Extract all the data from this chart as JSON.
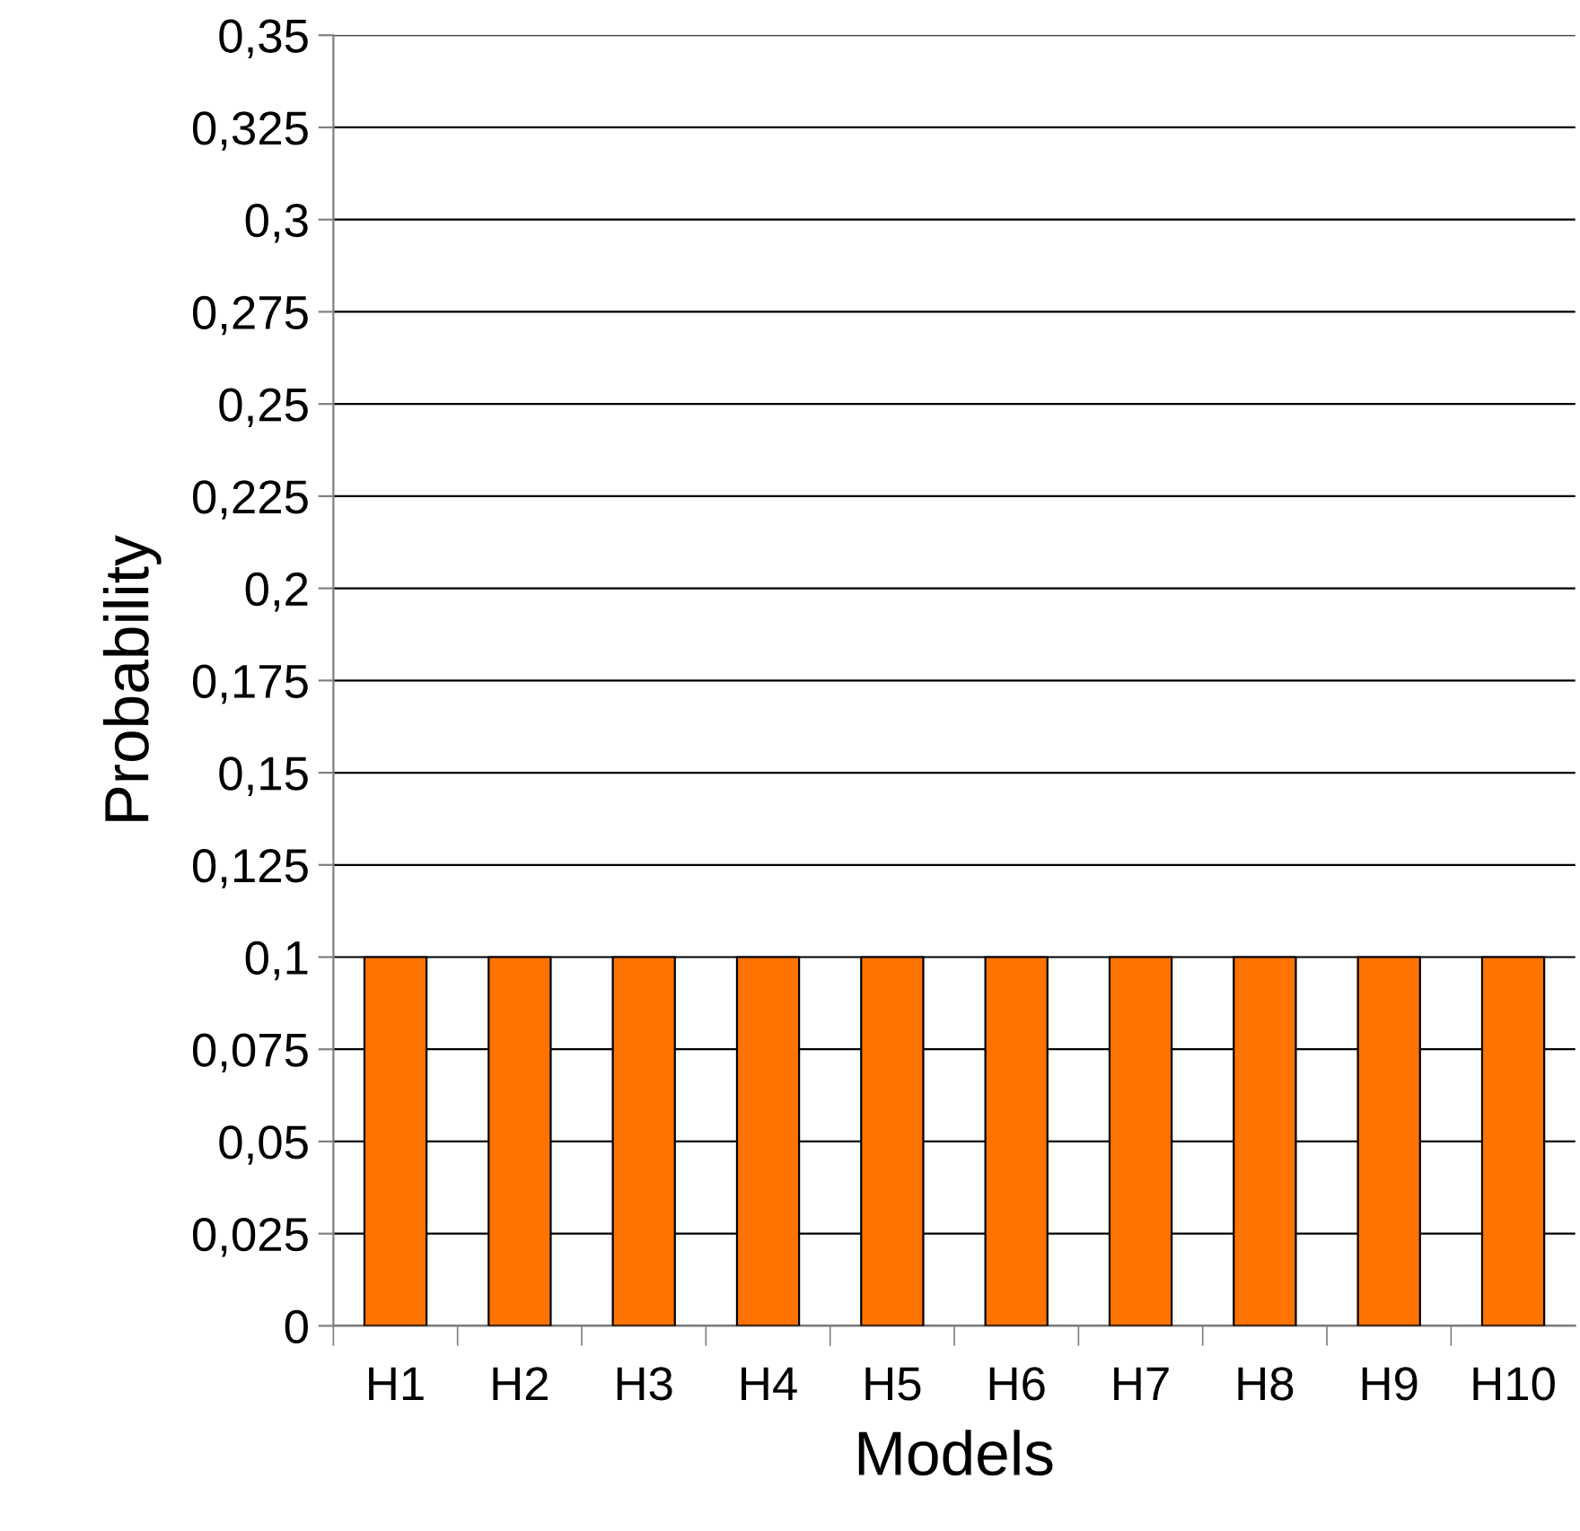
{
  "chart_data": {
    "type": "bar",
    "xlabel": "Models",
    "ylabel": "Probability",
    "categories": [
      "H1",
      "H2",
      "H3",
      "H4",
      "H5",
      "H6",
      "H7",
      "H8",
      "H9",
      "H10"
    ],
    "values": [
      0.1,
      0.1,
      0.1,
      0.1,
      0.1,
      0.1,
      0.1,
      0.1,
      0.1,
      0.1
    ],
    "color": "#ff7300",
    "ylim": [
      0,
      0.35
    ],
    "yticks": [
      0,
      {
        "value": 0.025,
        "label": "0,025"
      },
      {
        "value": 0.05,
        "label": "0,05"
      },
      {
        "value": 0.075,
        "label": "0,075"
      },
      {
        "value": 0.1,
        "label": "0,1"
      },
      {
        "value": 0.125,
        "label": "0,125"
      },
      {
        "value": 0.15,
        "label": "0,15"
      },
      {
        "value": 0.175,
        "label": "0,175"
      },
      {
        "value": 0.2,
        "label": "0,2"
      },
      {
        "value": 0.225,
        "label": "0,225"
      },
      {
        "value": 0.25,
        "label": "0,25"
      },
      {
        "value": 0.275,
        "label": "0,275"
      },
      {
        "value": 0.3,
        "label": "0,3"
      },
      {
        "value": 0.325,
        "label": "0,325"
      },
      {
        "value": 0.35,
        "label": "0,35"
      }
    ],
    "grid": "y",
    "legend": false
  }
}
